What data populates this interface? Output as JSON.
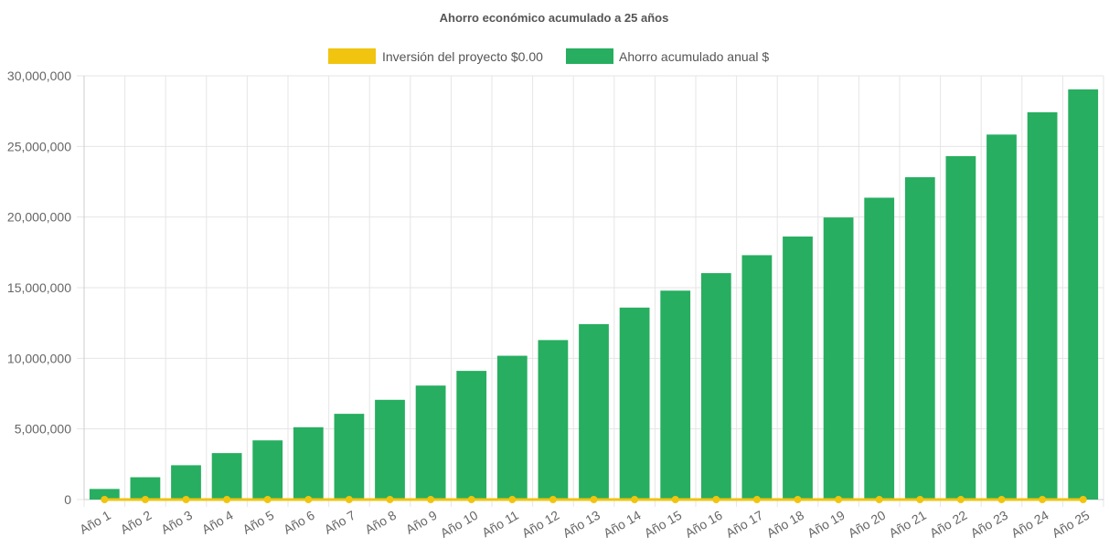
{
  "chart_data": {
    "type": "bar",
    "title": "Ahorro económico acumulado a 25 años",
    "categories": [
      "Año 1",
      "Año 2",
      "Año 3",
      "Año 4",
      "Año 5",
      "Año 6",
      "Año 7",
      "Año 8",
      "Año 9",
      "Año 10",
      "Año 11",
      "Año 12",
      "Año 13",
      "Año 14",
      "Año 15",
      "Año 16",
      "Año 17",
      "Año 18",
      "Año 19",
      "Año 20",
      "Año 21",
      "Año 22",
      "Año 23",
      "Año 24",
      "Año 25"
    ],
    "series": [
      {
        "name": "Inversión del proyecto $0.00",
        "type": "line",
        "color": "#f1c40f",
        "values": [
          0,
          0,
          0,
          0,
          0,
          0,
          0,
          0,
          0,
          0,
          0,
          0,
          0,
          0,
          0,
          0,
          0,
          0,
          0,
          0,
          0,
          0,
          0,
          0,
          0
        ]
      },
      {
        "name": "Ahorro acumulado anual $",
        "type": "bar",
        "color": "#27ae60",
        "values": [
          750000,
          1580000,
          2430000,
          3290000,
          4190000,
          5120000,
          6070000,
          7060000,
          8070000,
          9110000,
          10180000,
          11290000,
          12420000,
          13590000,
          14790000,
          16030000,
          17300000,
          18620000,
          19970000,
          21370000,
          22820000,
          24310000,
          25840000,
          27420000,
          29040000
        ]
      }
    ],
    "yticks": [
      "0",
      "5,000,000",
      "10,000,000",
      "15,000,000",
      "20,000,000",
      "25,000,000",
      "30,000,000"
    ],
    "ytick_values": [
      0,
      5000000,
      10000000,
      15000000,
      20000000,
      25000000,
      30000000
    ],
    "ylim": [
      0,
      30000000
    ],
    "xlabel": "",
    "ylabel": "",
    "grid": true,
    "legend_position": "top"
  }
}
